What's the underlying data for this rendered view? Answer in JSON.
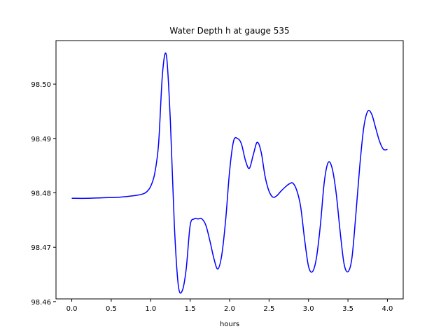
{
  "chart_data": {
    "type": "line",
    "title": "Water Depth h at gauge 535",
    "xlabel": "hours",
    "ylabel": "",
    "xlim": [
      -0.2,
      4.2
    ],
    "ylim": [
      98.4605,
      98.508
    ],
    "xticks": [
      0.0,
      0.5,
      1.0,
      1.5,
      2.0,
      2.5,
      3.0,
      3.5,
      4.0
    ],
    "xtick_labels": [
      "0.0",
      "0.5",
      "1.0",
      "1.5",
      "2.0",
      "2.5",
      "3.0",
      "3.5",
      "4.0"
    ],
    "yticks": [
      98.46,
      98.47,
      98.48,
      98.49,
      98.5
    ],
    "ytick_labels": [
      "98.46",
      "98.47",
      "98.48",
      "98.49",
      "98.50"
    ],
    "grid": false,
    "legend": "none",
    "series": [
      {
        "color": "#0000ff",
        "x": [
          0.0,
          0.2,
          0.4,
          0.6,
          0.8,
          0.9,
          0.95,
          1.0,
          1.05,
          1.1,
          1.15,
          1.2,
          1.25,
          1.3,
          1.35,
          1.4,
          1.45,
          1.5,
          1.55,
          1.6,
          1.65,
          1.7,
          1.75,
          1.8,
          1.85,
          1.9,
          1.95,
          2.0,
          2.05,
          2.1,
          2.15,
          2.2,
          2.25,
          2.3,
          2.35,
          2.4,
          2.45,
          2.5,
          2.55,
          2.6,
          2.65,
          2.7,
          2.75,
          2.8,
          2.85,
          2.9,
          2.95,
          3.0,
          3.05,
          3.1,
          3.15,
          3.2,
          3.25,
          3.3,
          3.35,
          3.4,
          3.45,
          3.5,
          3.55,
          3.6,
          3.65,
          3.7,
          3.75,
          3.8,
          3.85,
          3.9,
          3.95,
          4.0
        ],
        "y": [
          98.479,
          98.479,
          98.4791,
          98.4792,
          98.4795,
          98.4798,
          98.4802,
          98.4812,
          98.4835,
          98.489,
          98.502,
          98.5052,
          98.493,
          98.474,
          98.463,
          98.462,
          98.466,
          98.474,
          98.4752,
          98.4752,
          98.4752,
          98.474,
          98.4712,
          98.468,
          98.466,
          98.4685,
          98.475,
          98.484,
          98.4895,
          98.49,
          98.489,
          98.486,
          98.4845,
          98.487,
          98.4893,
          98.4875,
          98.483,
          98.4803,
          98.4792,
          98.4795,
          98.4803,
          98.481,
          98.4816,
          98.4818,
          98.4805,
          98.4775,
          98.4715,
          98.4665,
          98.4655,
          98.468,
          98.474,
          98.482,
          98.4856,
          98.4845,
          98.48,
          98.473,
          98.467,
          98.4655,
          98.468,
          98.476,
          98.485,
          98.492,
          98.495,
          98.4945,
          98.492,
          98.4895,
          98.488,
          98.488
        ]
      }
    ]
  }
}
